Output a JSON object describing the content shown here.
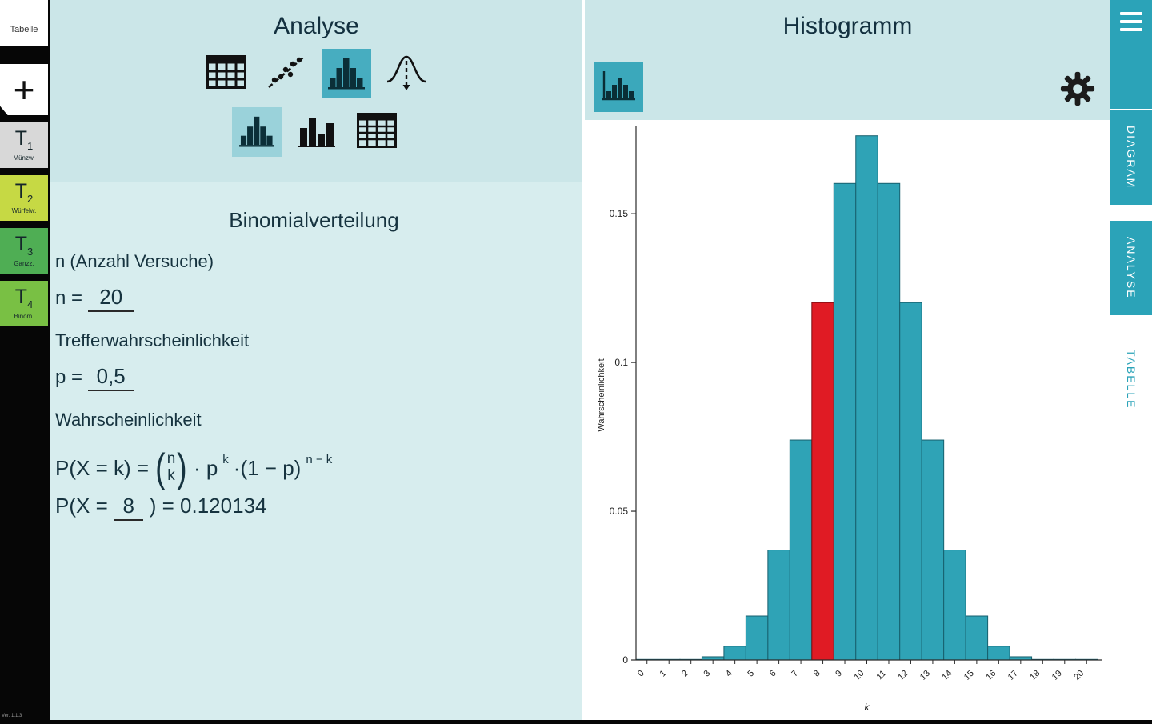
{
  "colors": {
    "teal": "#2ba3b8",
    "header_bg": "#cbe6e8",
    "content_bg": "#d7edee",
    "selected_icon_bg": "#47adc0",
    "selected_icon_bg_light": "#9ad2da",
    "bar_fill": "#2fa3b6",
    "bar_highlight": "#e01b24"
  },
  "sidebar": {
    "header_label": "Tabelle",
    "add_button": "+",
    "version": "Ver. 1.1.3",
    "tabs": [
      {
        "name": "T",
        "sub": "1",
        "label": "Münzw.",
        "color": "#d8d8d8"
      },
      {
        "name": "T",
        "sub": "2",
        "label": "Würfelw.",
        "color": "#c6d944"
      },
      {
        "name": "T",
        "sub": "3",
        "label": "Ganzz.",
        "color": "#4fae54"
      },
      {
        "name": "T",
        "sub": "4",
        "label": "Binom.",
        "color": "#79c044"
      }
    ]
  },
  "analyse": {
    "title": "Analyse",
    "toolbar_icons_row1": [
      "table-icon",
      "scatter-plot-icon",
      "histogram-icon",
      "normal-curve-icon"
    ],
    "toolbar_icons_row2": [
      "histogram-icon",
      "bar-chart-icon",
      "table-grid-icon"
    ],
    "section_title": "Binomialverteilung",
    "n_label": "n (Anzahl Versuche)",
    "n_prefix": "n =",
    "n_value": "20",
    "p_label": "Trefferwahrscheinlichkeit",
    "p_prefix": "p =",
    "p_value": "0,5",
    "prob_label": "Wahrscheinlichkeit",
    "formula": {
      "lhs": "P(X = k) =",
      "binom_top": "n",
      "binom_bottom": "k",
      "dot_p": "· p",
      "exp1": "k",
      "mid": "·(1 − p)",
      "exp2": "n − k"
    },
    "result": {
      "prefix": "P(X =",
      "k_value": "8",
      "suffix": ") = 0.120134"
    }
  },
  "diagram": {
    "title": "Histogramm",
    "icons": [
      "histogram-icon",
      "gear-icon"
    ]
  },
  "right_tabs": [
    {
      "label": "DIAGRAM",
      "active": true
    },
    {
      "label": "ANALYSE",
      "active": true
    },
    {
      "label": "TABELLE",
      "active": false
    }
  ],
  "chart_data": {
    "type": "bar",
    "title": "Histogramm",
    "xlabel": "k",
    "ylabel": "Wahrscheinlichkeit",
    "x": [
      0,
      1,
      2,
      3,
      4,
      5,
      6,
      7,
      8,
      9,
      10,
      11,
      12,
      13,
      14,
      15,
      16,
      17,
      18,
      19,
      20
    ],
    "values": [
      9.5e-07,
      1.91e-05,
      0.000181,
      0.001087,
      0.004621,
      0.014786,
      0.036964,
      0.073929,
      0.120134,
      0.160179,
      0.176197,
      0.160179,
      0.120134,
      0.073929,
      0.036964,
      0.014786,
      0.004621,
      0.001087,
      0.000181,
      1.91e-05,
      9.5e-07
    ],
    "highlight_index": 8,
    "bar_color": "#2fa3b6",
    "highlight_color": "#e01b24",
    "ylim": [
      0,
      0.178
    ],
    "yticks": [
      0,
      0.05,
      0.1,
      0.15
    ],
    "grid": false,
    "legend": "none"
  }
}
